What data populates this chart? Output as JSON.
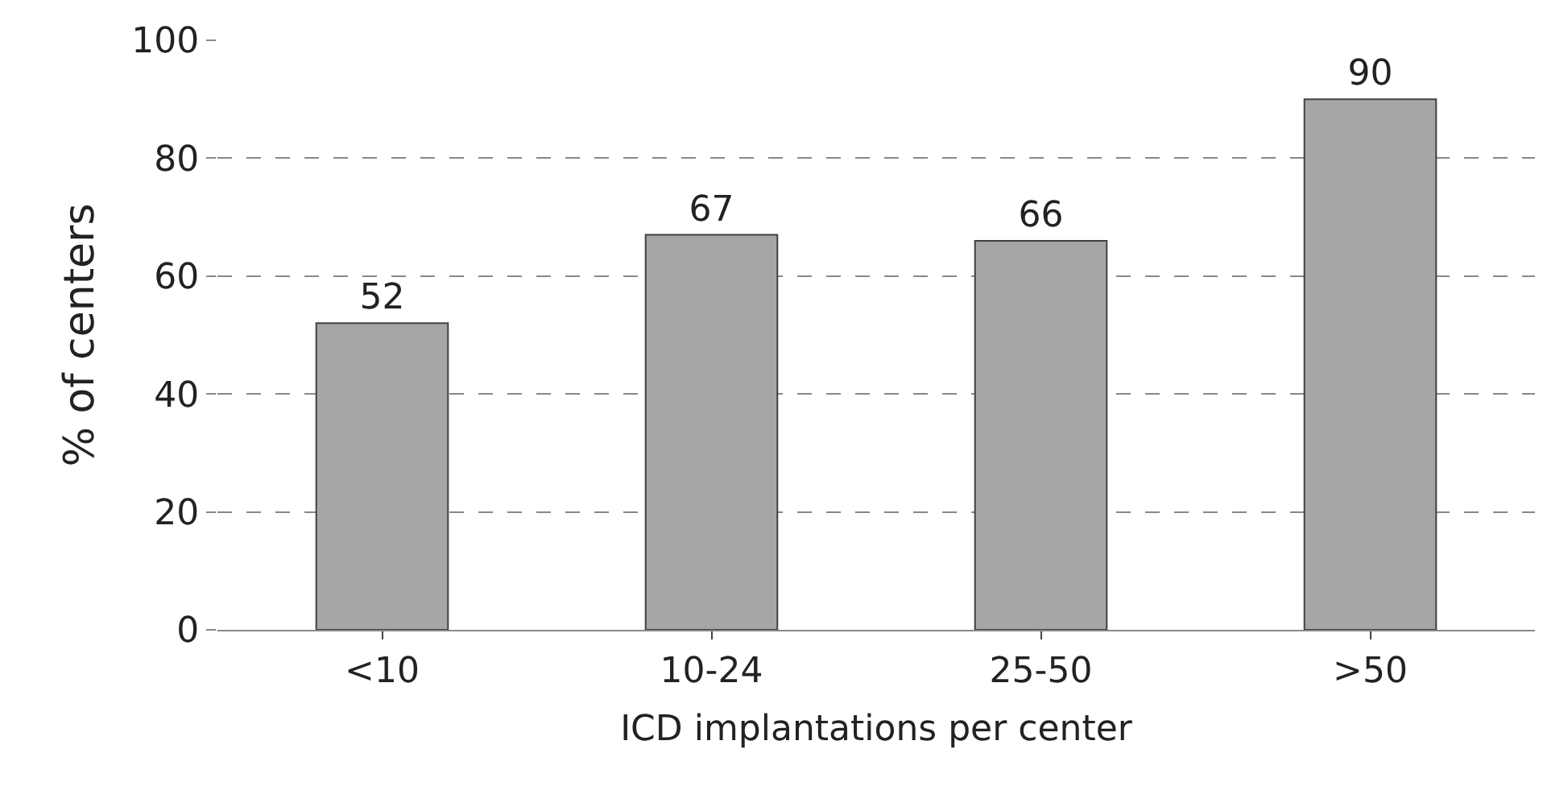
{
  "chart_data": {
    "type": "bar",
    "xlabel": "ICD implantations per center",
    "ylabel": "% of centers",
    "categories": [
      "<10",
      "10-24",
      "25-50",
      ">50"
    ],
    "values": [
      52,
      67,
      66,
      90
    ],
    "color": "#a6a6a6",
    "ylim": [
      0,
      100
    ],
    "yticks": [
      0,
      20,
      40,
      60,
      80,
      100
    ],
    "grid": "y",
    "data_labels": true
  }
}
